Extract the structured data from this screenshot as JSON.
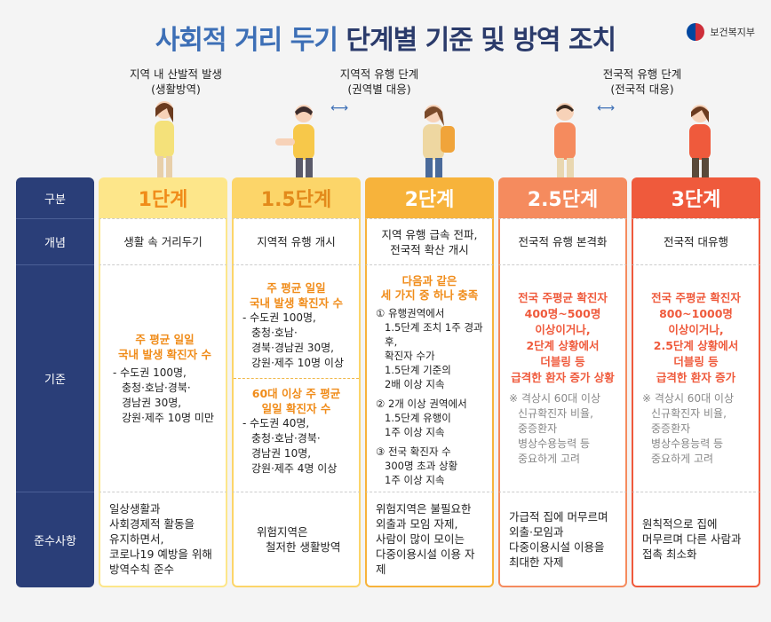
{
  "title": {
    "part1": "사회적 거리 두기",
    "part2": "단계별 기준 및 방역 조치"
  },
  "logo": {
    "text": "보건복지부",
    "icon": "taegeuk-icon"
  },
  "phases": {
    "local": {
      "line1": "지역 내 산발적 발생",
      "line2": "(생활방역)"
    },
    "regional": {
      "line1": "지역적 유행 단계",
      "line2": "(권역별 대응)"
    },
    "national": {
      "line1": "전국적 유행 단계",
      "line2": "(전국적 대응)"
    }
  },
  "arrow": "⟷",
  "colors": {
    "navy": "#2a3e78",
    "level1": "#fde68a",
    "level15": "#fcd569",
    "level2": "#f7b33b",
    "level25": "#f58b5e",
    "level3": "#ef5a3c"
  },
  "rows": {
    "division": "구분",
    "concept": "개념",
    "criteria": "기준",
    "compliance": "준수사항"
  },
  "levels": [
    {
      "name": "1단계",
      "concept": "생활 속 거리두기"
    },
    {
      "name": "1.5단계",
      "concept": "지역적 유행 개시"
    },
    {
      "name": "2단계",
      "concept_line1": "지역 유행 급속 전파,",
      "concept_line2": "전국적 확산 개시"
    },
    {
      "name": "2.5단계",
      "concept": "전국적 유행 본격화"
    },
    {
      "name": "3단계",
      "concept": "전국적 대유행"
    }
  ],
  "criteria": {
    "l1": {
      "head1": "주 평균 일일",
      "head2": "국내 발생 확진자 수",
      "b1": "- 수도권 100명,",
      "b2": "충청·호남·경북·",
      "b3": "경남권 30명,",
      "b4": "강원·제주 10명 미만"
    },
    "l15a": {
      "head1": "주 평균 일일",
      "head2": "국내 발생 확진자 수",
      "b1": "- 수도권 100명,",
      "b2": "충청·호남·",
      "b3": "경북·경남권 30명,",
      "b4": "강원·제주 10명 이상"
    },
    "l15b": {
      "head1": "60대 이상 주 평균",
      "head2": "일일 확진자 수",
      "b1": "- 수도권 40명,",
      "b2": "충청·호남·경북·",
      "b3": "경남권 10명,",
      "b4": "강원·제주 4명 이상"
    },
    "l2": {
      "head1": "다음과 같은",
      "head2": "세 가지 중 하나 충족",
      "c1a": "① 유행권역에서",
      "c1b": "1.5단계 조치 1주 경과 후,",
      "c1c": "확진자 수가",
      "c1d": "1.5단계 기준의",
      "c1e": "2배 이상 지속",
      "c2a": "② 2개 이상 권역에서",
      "c2b": "1.5단계 유행이",
      "c2c": "1주 이상 지속",
      "c3a": "③ 전국 확진자 수",
      "c3b": "300명 초과 상황",
      "c3c": "1주 이상 지속"
    },
    "l25": {
      "h1": "전국 주평균 확진자",
      "h2": "400명~500명",
      "h3": "이상이거나,",
      "h4": "2단계 상황에서",
      "h5": "더블링 등",
      "h6": "급격한 환자 증가 상황",
      "n1": "※ 격상시 60대 이상",
      "n2": "신규확진자 비율,",
      "n3": "중증환자",
      "n4": "병상수용능력 등",
      "n5": "중요하게 고려"
    },
    "l3": {
      "h1": "전국 주평균 확진자",
      "h2": "800~1000명",
      "h3": "이상이거나,",
      "h4": "2.5단계 상황에서",
      "h5": "더블링 등",
      "h6": "급격한 환자 증가",
      "n1": "※ 격상시 60대 이상",
      "n2": "신규확진자 비율,",
      "n3": "중증환자",
      "n4": "병상수용능력 등",
      "n5": "중요하게 고려"
    }
  },
  "compliance": {
    "l1": {
      "a": "일상생활과",
      "b": "사회경제적 활동을",
      "c": "유지하면서,",
      "d": "코로나19 예방을 위해",
      "e": "방역수칙 준수"
    },
    "l15": {
      "a": "위험지역은",
      "b": "철저한 생활방역"
    },
    "l2": {
      "a": "위험지역은 불필요한",
      "b": "외출과 모임 자제,",
      "c": "사람이 많이 모이는",
      "d": "다중이용시설 이용 자제"
    },
    "l25": {
      "a": "가급적 집에 머무르며",
      "b": "외출·모임과",
      "c": "다중이용시설 이용을",
      "d": "최대한 자제"
    },
    "l3": {
      "a": "원칙적으로 집에",
      "b": "머무르며 다른 사람과",
      "c": "접촉 최소화"
    }
  }
}
